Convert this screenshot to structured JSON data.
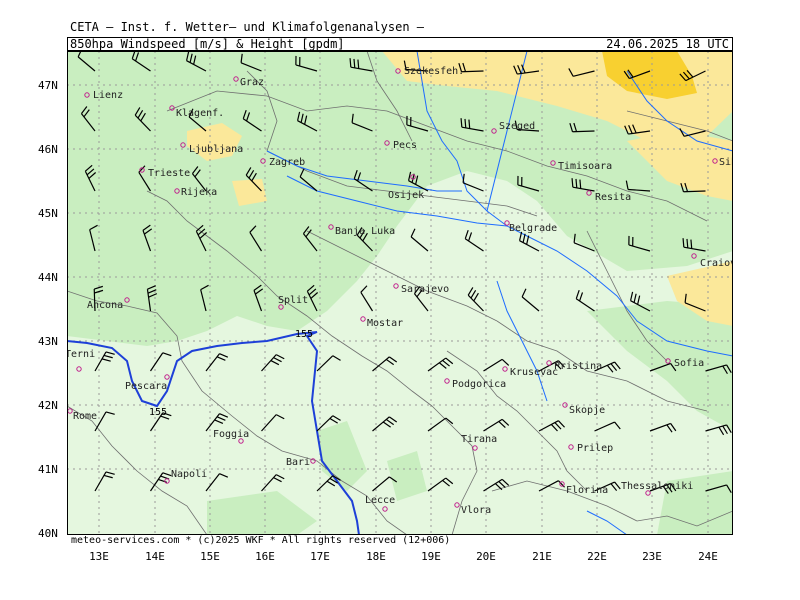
{
  "header": {
    "institution": "CETA — Inst. f. Wetter— und Klimafolgenanalysen —",
    "product": "850hpa_Windspeed_[m/s]_&_Height_[gpdm]",
    "valid_time": "24.06.2025 18 UTC"
  },
  "footer": "meteo-services.com * (c)2025 WKF * All rights reserved (12+006)",
  "axes": {
    "lat_labels": [
      "47N",
      "46N",
      "45N",
      "44N",
      "43N",
      "42N",
      "41N",
      "40N"
    ],
    "lon_labels": [
      "13E",
      "14E",
      "15E",
      "16E",
      "17E",
      "18E",
      "19E",
      "20E",
      "21E",
      "22E",
      "23E",
      "24E"
    ]
  },
  "contours": [
    {
      "label_west": "155",
      "label_east": "155",
      "color": "#1e40d8"
    }
  ],
  "cities": [
    {
      "name": "Lienz"
    },
    {
      "name": "Graz"
    },
    {
      "name": "Szekesfeh."
    },
    {
      "name": "Klagenf."
    },
    {
      "name": "Szeged"
    },
    {
      "name": "Ljubljana"
    },
    {
      "name": "Pecs"
    },
    {
      "name": "Zagreb"
    },
    {
      "name": "Timisoara"
    },
    {
      "name": "Sibiu"
    },
    {
      "name": "Trieste"
    },
    {
      "name": "Osijek"
    },
    {
      "name": "Rijeka"
    },
    {
      "name": "Resita"
    },
    {
      "name": "Banja Luka"
    },
    {
      "name": "Belgrade"
    },
    {
      "name": "Craiova"
    },
    {
      "name": "Sarajevo"
    },
    {
      "name": "Ancona"
    },
    {
      "name": "Split"
    },
    {
      "name": "Mostar"
    },
    {
      "name": "Terni"
    },
    {
      "name": "Pristina"
    },
    {
      "name": "Sofia"
    },
    {
      "name": "Pescara"
    },
    {
      "name": "Krusevac"
    },
    {
      "name": "Podgorica"
    },
    {
      "name": "Skopje"
    },
    {
      "name": "Rome"
    },
    {
      "name": "Foggia"
    },
    {
      "name": "Tirana"
    },
    {
      "name": "Prilep"
    },
    {
      "name": "Bari"
    },
    {
      "name": "Napoli"
    },
    {
      "name": "Florina"
    },
    {
      "name": "Thessaloniki"
    },
    {
      "name": "Vlora"
    },
    {
      "name": "Lecce"
    }
  ],
  "colors": {
    "light_green": "#e5f7df",
    "green": "#c9eec0",
    "yellow": "#fbe89a",
    "orange": "#f8d030",
    "river": "#1e6cff",
    "contour": "#1e40d8",
    "city_marker": "#c0208c",
    "border": "#777777",
    "grid": "#9a9a9a"
  }
}
